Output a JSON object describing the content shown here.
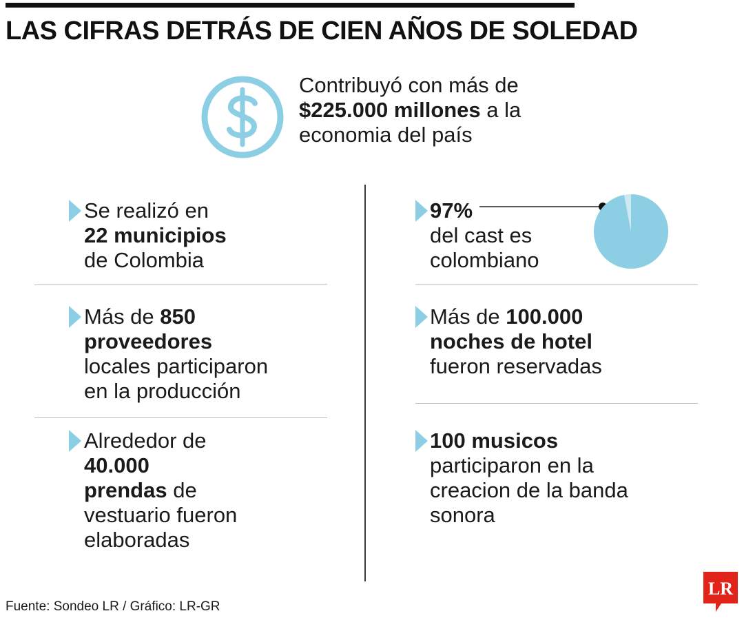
{
  "title": "LAS CIFRAS DETRÁS DE CIEN AÑOS DE SOLEDAD",
  "colors": {
    "accent": "#8ccfe4",
    "logo": "#e2231a",
    "text": "#1a1a1a"
  },
  "money": {
    "icon": "dollar-circle-icon",
    "line1": "Contribuyó con más de",
    "amount": "$225.000 millones",
    "after_amount": " a la",
    "line3": "economia del país"
  },
  "left_stats": [
    {
      "pre": "Se realizó en",
      "bold": "22 municipios",
      "post": "de Colombia"
    },
    {
      "pre": "Más de ",
      "bold1": "850",
      "bold2": "proveedores",
      "post1": "locales participaron",
      "post2": "en la producción"
    },
    {
      "pre": "Alrededor de",
      "bold1": "40.000",
      "bold2": "prendas",
      "after_bold2": " de",
      "post1": "vestuario fueron",
      "post2": "elaboradas"
    }
  ],
  "right_stats": [
    {
      "bold": "97%",
      "post1": "del cast es",
      "post2": "colombiano",
      "percent": 97
    },
    {
      "pre": "Más de ",
      "bold1": "100.000",
      "bold2": "noches de hotel",
      "post": "fueron reservadas"
    },
    {
      "bold": "100 musicos",
      "post1": "participaron en la",
      "post2": "creacion de la banda",
      "post3": "sonora"
    }
  ],
  "footer": "Fuente: Sondeo LR / Gráfico: LR-GR",
  "logo": {
    "text": "LR",
    "icon": "lr-logo-icon"
  }
}
